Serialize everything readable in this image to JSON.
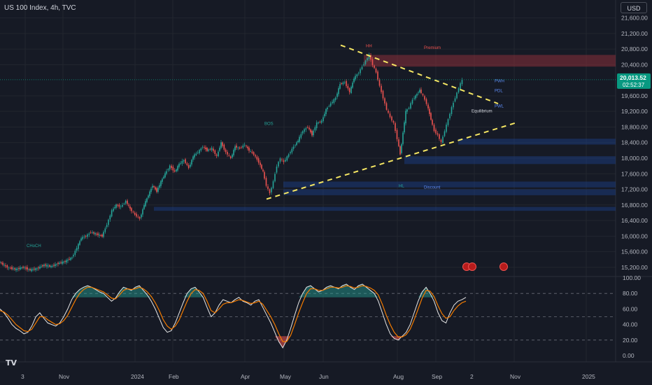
{
  "header": {
    "symbol_title": "US 100 Index, 4h, TVC",
    "currency_button": "USD"
  },
  "logo": {
    "icon": "tradingview-logo-icon",
    "text": "TV"
  },
  "colors": {
    "background": "#161a25",
    "grid": "#22262f",
    "axis_text": "#b2b5be",
    "candle_up": "#26a69a",
    "candle_down": "#ef5350",
    "trendline": "#f5e663",
    "price_label": "#089981",
    "supply_zone": "#8b2f3a",
    "demand_zone": "#1c3a7a",
    "rsi_line": "#e6e6e6",
    "rsi_signal": "#f57c00"
  },
  "chart_data": [
    {
      "type": "candlestick",
      "title": "US 100 Index, 4h, TVC",
      "x_tick_labels": [
        "3",
        "Nov",
        "2024",
        "Feb",
        "Apr",
        "May",
        "Jun",
        "Aug",
        "Sep",
        "2",
        "Nov",
        "2025"
      ],
      "y_tick_labels": [
        "15,200.00",
        "15,600.00",
        "16,000.00",
        "16,400.00",
        "16,800.00",
        "17,200.00",
        "17,600.00",
        "18,000.00",
        "18,400.00",
        "18,800.00",
        "19,200.00",
        "19,600.00",
        "20,400.00",
        "20,800.00",
        "21,200.00",
        "21,600.00"
      ],
      "ylim": [
        15000,
        21700
      ],
      "grid": true,
      "last_price": {
        "value": "20,013.52",
        "countdown": "02:52:37"
      },
      "close_path": [
        [
          0,
          15350
        ],
        [
          8,
          15250
        ],
        [
          15,
          15180
        ],
        [
          25,
          15150
        ],
        [
          35,
          15200
        ],
        [
          45,
          15130
        ],
        [
          55,
          15170
        ],
        [
          65,
          15260
        ],
        [
          75,
          15220
        ],
        [
          85,
          15300
        ],
        [
          95,
          15350
        ],
        [
          105,
          15450
        ],
        [
          112,
          15700
        ],
        [
          118,
          15950
        ],
        [
          125,
          16000
        ],
        [
          132,
          16100
        ],
        [
          140,
          16050
        ],
        [
          148,
          16000
        ],
        [
          155,
          16300
        ],
        [
          162,
          16650
        ],
        [
          168,
          16800
        ],
        [
          175,
          16750
        ],
        [
          182,
          16900
        ],
        [
          188,
          16700
        ],
        [
          195,
          16550
        ],
        [
          202,
          16450
        ],
        [
          208,
          16800
        ],
        [
          214,
          17050
        ],
        [
          220,
          17300
        ],
        [
          226,
          17150
        ],
        [
          232,
          17400
        ],
        [
          238,
          17600
        ],
        [
          245,
          17800
        ],
        [
          252,
          17650
        ],
        [
          258,
          17850
        ],
        [
          265,
          17950
        ],
        [
          272,
          17750
        ],
        [
          278,
          18050
        ],
        [
          285,
          18150
        ],
        [
          292,
          18300
        ],
        [
          298,
          18200
        ],
        [
          305,
          18250
        ],
        [
          312,
          18050
        ],
        [
          318,
          18400
        ],
        [
          325,
          18150
        ],
        [
          332,
          18000
        ],
        [
          338,
          18300
        ],
        [
          345,
          18250
        ],
        [
          352,
          18350
        ],
        [
          358,
          18200
        ],
        [
          365,
          18100
        ],
        [
          372,
          17900
        ],
        [
          378,
          17650
        ],
        [
          383,
          17300
        ],
        [
          388,
          17100
        ],
        [
          393,
          17400
        ],
        [
          398,
          17800
        ],
        [
          403,
          18000
        ],
        [
          408,
          17900
        ],
        [
          415,
          18100
        ],
        [
          422,
          18300
        ],
        [
          428,
          18450
        ],
        [
          435,
          18700
        ],
        [
          442,
          18800
        ],
        [
          448,
          18600
        ],
        [
          455,
          18900
        ],
        [
          462,
          18950
        ],
        [
          468,
          19250
        ],
        [
          475,
          19400
        ],
        [
          482,
          19550
        ],
        [
          488,
          19900
        ],
        [
          495,
          19950
        ],
        [
          502,
          19700
        ],
        [
          508,
          20050
        ],
        [
          515,
          20200
        ],
        [
          520,
          20350
        ],
        [
          525,
          20500
        ],
        [
          530,
          20650
        ],
        [
          535,
          20400
        ],
        [
          540,
          20200
        ],
        [
          545,
          19850
        ],
        [
          550,
          19550
        ],
        [
          555,
          19250
        ],
        [
          560,
          19050
        ],
        [
          565,
          18900
        ],
        [
          570,
          18500
        ],
        [
          574,
          18100
        ],
        [
          578,
          18650
        ],
        [
          582,
          19200
        ],
        [
          587,
          19300
        ],
        [
          592,
          19500
        ],
        [
          598,
          19650
        ],
        [
          602,
          19750
        ],
        [
          607,
          19600
        ],
        [
          612,
          19400
        ],
        [
          618,
          19000
        ],
        [
          623,
          18700
        ],
        [
          628,
          18600
        ],
        [
          633,
          18400
        ],
        [
          638,
          18700
        ],
        [
          643,
          19000
        ],
        [
          648,
          19300
        ],
        [
          653,
          19550
        ],
        [
          658,
          19800
        ],
        [
          663,
          20013
        ]
      ],
      "annotations": [
        "Premium",
        "HH",
        "Equilibrium",
        "Discount",
        "PWH",
        "PDL",
        "PWL",
        "BOS",
        "CHoCH",
        "HL"
      ],
      "zones": [
        {
          "kind": "supply",
          "from": 20350,
          "to": 20650,
          "x_start": 520
        },
        {
          "kind": "demand",
          "from": 18350,
          "to": 18500,
          "x_start": 655
        },
        {
          "kind": "demand",
          "from": 17850,
          "to": 18050,
          "x_start": 578
        },
        {
          "kind": "demand",
          "from": 17250,
          "to": 17400,
          "x_start": 405
        },
        {
          "kind": "demand",
          "from": 17050,
          "to": 17200,
          "x_start": 405
        },
        {
          "kind": "demand",
          "from": 16650,
          "to": 16750,
          "x_start": 220
        }
      ],
      "trendlines": [
        {
          "from": [
            487,
            20900
          ],
          "to": [
            712,
            19400
          ]
        },
        {
          "from": [
            381,
            16950
          ],
          "to": [
            736,
            18900
          ]
        }
      ]
    },
    {
      "type": "line",
      "title": "",
      "y_tick_labels": [
        "0.00",
        "20.00",
        "40.00",
        "60.00",
        "80.00",
        "100.00"
      ],
      "ylim": [
        0,
        100
      ],
      "reference_lines": [
        80,
        50,
        20
      ],
      "series": [
        {
          "values": [
            60,
            55,
            48,
            40,
            35,
            32,
            28,
            30,
            38,
            50,
            55,
            48,
            42,
            40,
            38,
            42,
            50,
            60,
            72,
            80,
            85,
            88,
            90,
            88,
            85,
            82,
            80,
            75,
            70,
            74,
            82,
            88,
            86,
            84,
            88,
            90,
            84,
            78,
            70,
            60,
            48,
            36,
            30,
            32,
            42,
            55,
            68,
            80,
            86,
            88,
            82,
            75,
            62,
            50,
            55,
            65,
            72,
            70,
            68,
            72,
            75,
            70,
            68,
            65,
            70,
            72,
            62,
            52,
            42,
            30,
            18,
            10,
            20,
            35,
            52,
            68,
            80,
            88,
            90,
            86,
            82,
            84,
            88,
            90,
            88,
            86,
            90,
            92,
            88,
            85,
            90,
            92,
            88,
            84,
            80,
            70,
            55,
            40,
            28,
            22,
            20,
            25,
            30,
            40,
            55,
            70,
            82,
            88,
            80,
            70,
            55,
            45,
            42,
            55,
            65,
            70,
            72,
            75
          ]
        },
        {
          "values": [
            58,
            56,
            52,
            46,
            40,
            36,
            32,
            31,
            34,
            42,
            50,
            50,
            46,
            43,
            40,
            41,
            45,
            52,
            62,
            72,
            80,
            85,
            88,
            88,
            86,
            84,
            82,
            78,
            74,
            73,
            78,
            84,
            86,
            85,
            86,
            88,
            86,
            82,
            76,
            68,
            58,
            46,
            38,
            34,
            38,
            46,
            58,
            70,
            80,
            85,
            84,
            80,
            70,
            58,
            55,
            60,
            66,
            68,
            68,
            70,
            72,
            71,
            69,
            67,
            68,
            70,
            66,
            58,
            50,
            40,
            28,
            18,
            18,
            26,
            40,
            55,
            68,
            80,
            86,
            86,
            84,
            84,
            86,
            88,
            88,
            87,
            88,
            90,
            89,
            87,
            88,
            90,
            89,
            87,
            84,
            78,
            66,
            52,
            40,
            30,
            24,
            24,
            27,
            34,
            46,
            60,
            74,
            84,
            83,
            76,
            64,
            54,
            48,
            50,
            58,
            64,
            68,
            70
          ]
        }
      ]
    }
  ]
}
